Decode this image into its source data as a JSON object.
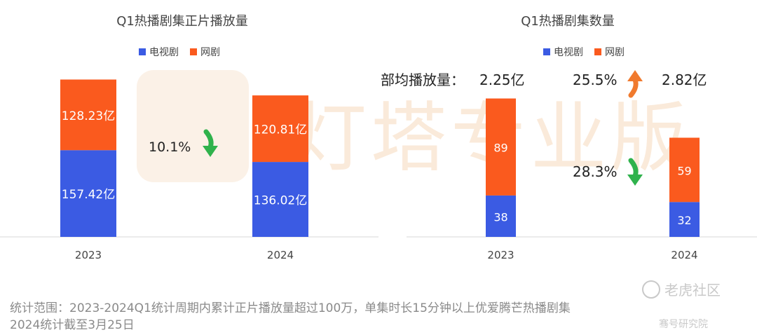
{
  "watermark": {
    "center_text": "灯塔专业版",
    "brand": "老虎社区",
    "brand_sub": "骞号研究院"
  },
  "footer": {
    "line1": "统计范围：2023-2024Q1统计周期内累计正片播放量超过100万，单集时长15分钟以上优爱腾芒热播剧集",
    "line2": "2024统计截至3月25日"
  },
  "chart_data": [
    {
      "type": "bar",
      "stacked": true,
      "title": "Q1热播剧集正片播放量",
      "categories": [
        "2023",
        "2024"
      ],
      "series": [
        {
          "name": "电视剧",
          "color": "#3b5be3",
          "values": [
            157.42,
            136.02
          ],
          "labels": [
            "157.42亿",
            "136.02亿"
          ]
        },
        {
          "name": "网剧",
          "color": "#fa5a1e",
          "values": [
            128.23,
            120.81
          ],
          "labels": [
            "128.23亿",
            "120.81亿"
          ]
        }
      ],
      "legend": "top-center",
      "grid": false,
      "annotations": [
        {
          "text": "10.1%",
          "arrow": "down",
          "arrow_color": "#2fb24c"
        }
      ]
    },
    {
      "type": "bar",
      "stacked": true,
      "title": "Q1热播剧集数量",
      "categories": [
        "2023",
        "2024"
      ],
      "series": [
        {
          "name": "电视剧",
          "color": "#3b5be3",
          "values": [
            38,
            32
          ],
          "labels": [
            "38",
            "32"
          ]
        },
        {
          "name": "网剧",
          "color": "#fa5a1e",
          "values": [
            89,
            59
          ],
          "labels": [
            "89",
            "59"
          ]
        }
      ],
      "legend": "top-center",
      "grid": false,
      "annotations": [
        {
          "text": "部均播放量：",
          "value": "2.25亿"
        },
        {
          "text": "25.5%",
          "arrow": "up",
          "arrow_color": "#f07a2e",
          "value": "2.82亿"
        },
        {
          "text": "28.3%",
          "arrow": "down",
          "arrow_color": "#2fb24c"
        }
      ]
    }
  ]
}
